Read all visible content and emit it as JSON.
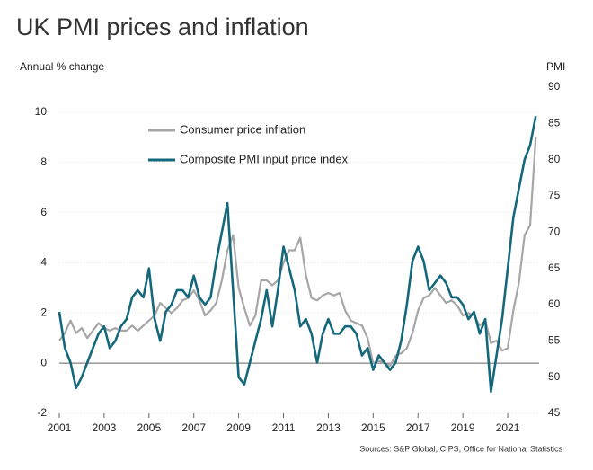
{
  "chart_data": {
    "type": "line",
    "title": "UK PMI prices and inflation",
    "y_label": "Annual % change",
    "y2_label": "PMI",
    "source": "Sources: S&P Global, CIPS, Office for National Statistics",
    "x": [
      2001.0,
      2001.25,
      2001.5,
      2001.75,
      2002.0,
      2002.25,
      2002.5,
      2002.75,
      2003.0,
      2003.25,
      2003.5,
      2003.75,
      2004.0,
      2004.25,
      2004.5,
      2004.75,
      2005.0,
      2005.25,
      2005.5,
      2005.75,
      2006.0,
      2006.25,
      2006.5,
      2006.75,
      2007.0,
      2007.25,
      2007.5,
      2007.75,
      2008.0,
      2008.25,
      2008.5,
      2008.75,
      2009.0,
      2009.25,
      2009.5,
      2009.75,
      2010.0,
      2010.25,
      2010.5,
      2010.75,
      2011.0,
      2011.25,
      2011.5,
      2011.75,
      2012.0,
      2012.25,
      2012.5,
      2012.75,
      2013.0,
      2013.25,
      2013.5,
      2013.75,
      2014.0,
      2014.25,
      2014.5,
      2014.75,
      2015.0,
      2015.25,
      2015.5,
      2015.75,
      2016.0,
      2016.25,
      2016.5,
      2016.75,
      2017.0,
      2017.25,
      2017.5,
      2017.75,
      2018.0,
      2018.25,
      2018.5,
      2018.75,
      2019.0,
      2019.25,
      2019.5,
      2019.75,
      2020.0,
      2020.25,
      2020.5,
      2020.75,
      2021.0,
      2021.25,
      2021.5,
      2021.75,
      2022.0,
      2022.25
    ],
    "series": [
      {
        "name": "Consumer price inflation",
        "color": "#a6a6a6",
        "values": [
          0.9,
          1.2,
          1.7,
          1.2,
          1.4,
          1.0,
          1.3,
          1.6,
          1.4,
          1.3,
          1.4,
          1.3,
          1.3,
          1.5,
          1.3,
          1.5,
          1.7,
          1.9,
          2.4,
          2.2,
          2.0,
          2.2,
          2.5,
          2.6,
          2.9,
          2.5,
          1.9,
          2.1,
          2.4,
          3.3,
          4.5,
          5.1,
          3.0,
          2.2,
          1.5,
          1.9,
          3.3,
          3.3,
          3.1,
          3.3,
          4.0,
          4.5,
          4.5,
          5.0,
          3.5,
          2.6,
          2.5,
          2.7,
          2.8,
          2.7,
          2.8,
          2.1,
          1.7,
          1.6,
          1.5,
          1.0,
          0.0,
          0.1,
          0.0,
          -0.1,
          0.3,
          0.4,
          0.6,
          1.2,
          2.1,
          2.6,
          2.7,
          3.0,
          2.7,
          2.4,
          2.5,
          2.3,
          1.9,
          2.0,
          1.9,
          1.5,
          1.7,
          0.8,
          0.9,
          0.5,
          0.6,
          2.1,
          3.2,
          5.1,
          5.5,
          9.0
        ]
      },
      {
        "name": "Composite PMI input price index",
        "color": "#14687b",
        "axis": "y2",
        "values": [
          59,
          54,
          52,
          48.5,
          50,
          52,
          54,
          56,
          57,
          54,
          55,
          57,
          58,
          61,
          62,
          61,
          65,
          58,
          55,
          59,
          60,
          62,
          62,
          61,
          64,
          61,
          60,
          61,
          66,
          70,
          74,
          62,
          50,
          49,
          52,
          55,
          58,
          62,
          57,
          62,
          68,
          65,
          62,
          57,
          58,
          56,
          52,
          56,
          58,
          56,
          56,
          57,
          57,
          56,
          53,
          54,
          51,
          53,
          52,
          51,
          52,
          55,
          60,
          66,
          68,
          66,
          62,
          63,
          64,
          63,
          61,
          61,
          60,
          58,
          59,
          56,
          58,
          48,
          53,
          58,
          65,
          72,
          76,
          80,
          82,
          86
        ]
      }
    ],
    "xlim": [
      2001,
      2022.4
    ],
    "xticks": [
      2001,
      2003,
      2005,
      2007,
      2009,
      2011,
      2013,
      2015,
      2017,
      2019,
      2021
    ],
    "ylim": [
      -2,
      11
    ],
    "yticks": [
      -2,
      0,
      2,
      4,
      6,
      8,
      10
    ],
    "y2lim": [
      45,
      90
    ],
    "y2ticks": [
      45,
      50,
      55,
      60,
      65,
      70,
      75,
      80,
      85,
      90
    ],
    "grid": true
  }
}
